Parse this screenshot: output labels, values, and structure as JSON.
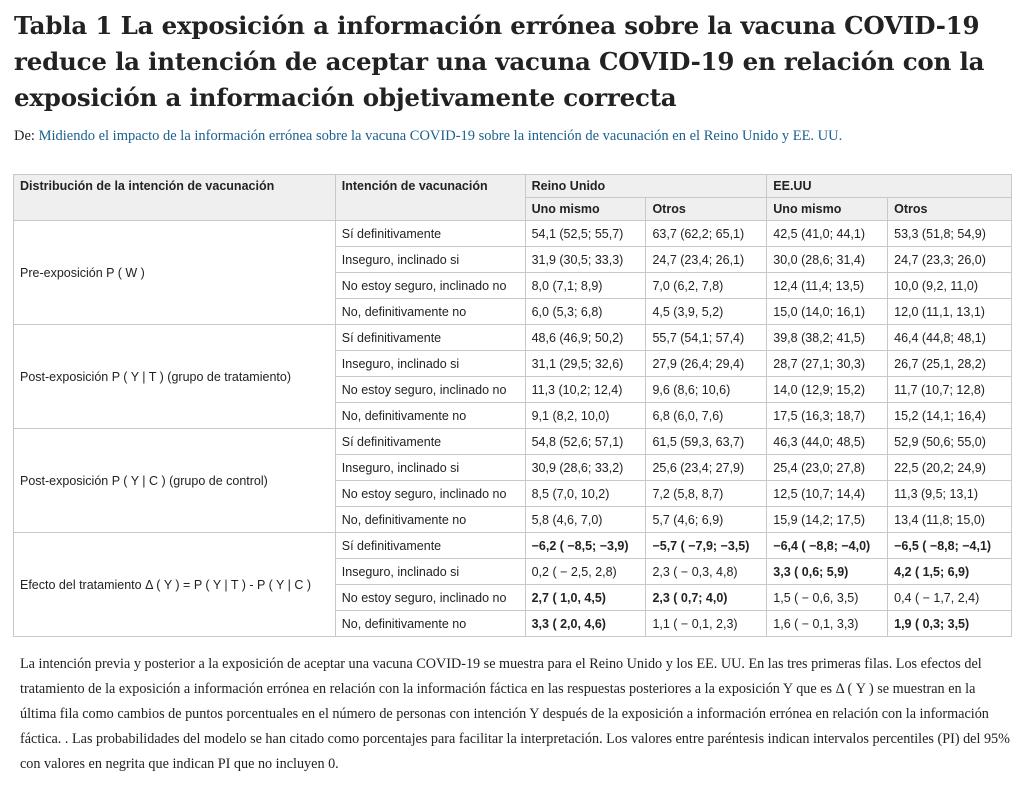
{
  "title": "Tabla 1 La exposición a información errónea sobre la vacuna COVID-19 reduce la intención de aceptar una vacuna COVID-19 en relación con la exposición a información objetivamente correcta",
  "from_prefix": "De:",
  "from_link": "Midiendo el impacto de la información errónea sobre la vacuna COVID-19 sobre la intención de vacunación en el Reino Unido y EE. UU.",
  "headers": {
    "col1": "Distribución de la intención de vacunación",
    "col2": "Intención de vacunación",
    "uk": "Reino Unido",
    "us": "EE.UU",
    "self": "Uno mismo",
    "others": "Otros"
  },
  "groups": [
    {
      "label": "Pre-exposición P ( W )",
      "rows": [
        {
          "intent": "Sí definitivamente",
          "uk_self": "54,1 (52,5; 55,7)",
          "uk_others": "63,7 (62,2; 65,1)",
          "us_self": "42,5 (41,0; 44,1)",
          "us_others": "53,3 (51,8; 54,9)"
        },
        {
          "intent": "Inseguro, inclinado si",
          "uk_self": "31,9 (30,5; 33,3)",
          "uk_others": "24,7 (23,4; 26,1)",
          "us_self": "30,0 (28,6; 31,4)",
          "us_others": "24,7 (23,3; 26,0)"
        },
        {
          "intent": "No estoy seguro, inclinado no",
          "uk_self": "8,0 (7,1; 8,9)",
          "uk_others": "7,0 (6,2, 7,8)",
          "us_self": "12,4 (11,4; 13,5)",
          "us_others": "10,0 (9,2, 11,0)"
        },
        {
          "intent": "No, definitivamente no",
          "uk_self": "6,0 (5,3; 6,8)",
          "uk_others": "4,5 (3,9, 5,2)",
          "us_self": "15,0 (14,0; 16,1)",
          "us_others": "12,0 (11,1, 13,1)"
        }
      ]
    },
    {
      "label": "Post-exposición P ( Y | T ) (grupo de tratamiento)",
      "rows": [
        {
          "intent": "Sí definitivamente",
          "uk_self": "48,6 (46,9; 50,2)",
          "uk_others": "55,7 (54,1; 57,4)",
          "us_self": "39,8 (38,2; 41,5)",
          "us_others": "46,4 (44,8; 48,1)"
        },
        {
          "intent": "Inseguro, inclinado si",
          "uk_self": "31,1 (29,5; 32,6)",
          "uk_others": "27,9 (26,4; 29,4)",
          "us_self": "28,7 (27,1; 30,3)",
          "us_others": "26,7 (25,1, 28,2)"
        },
        {
          "intent": "No estoy seguro, inclinado no",
          "uk_self": "11,3 (10,2; 12,4)",
          "uk_others": "9,6 (8,6; 10,6)",
          "us_self": "14,0 (12,9; 15,2)",
          "us_others": "11,7 (10,7; 12,8)"
        },
        {
          "intent": "No, definitivamente no",
          "uk_self": "9,1 (8,2, 10,0)",
          "uk_others": "6,8 (6,0, 7,6)",
          "us_self": "17,5 (16,3; 18,7)",
          "us_others": "15,2 (14,1; 16,4)"
        }
      ]
    },
    {
      "label": "Post-exposición P ( Y | C ) (grupo de control)",
      "rows": [
        {
          "intent": "Sí definitivamente",
          "uk_self": "54,8 (52,6; 57,1)",
          "uk_others": "61,5 (59,3, 63,7)",
          "us_self": "46,3 (44,0; 48,5)",
          "us_others": "52,9 (50,6; 55,0)"
        },
        {
          "intent": "Inseguro, inclinado si",
          "uk_self": "30,9 (28,6; 33,2)",
          "uk_others": "25,6 (23,4; 27,9)",
          "us_self": "25,4 (23,0; 27,8)",
          "us_others": "22,5 (20,2; 24,9)"
        },
        {
          "intent": "No estoy seguro, inclinado no",
          "uk_self": "8,5 (7,0, 10,2)",
          "uk_others": "7,2 (5,8, 8,7)",
          "us_self": "12,5 (10,7; 14,4)",
          "us_others": "11,3 (9,5; 13,1)"
        },
        {
          "intent": "No, definitivamente no",
          "uk_self": "5,8 (4,6, 7,0)",
          "uk_others": "5,7 (4,6; 6,9)",
          "us_self": "15,9 (14,2; 17,5)",
          "us_others": "13,4 (11,8; 15,0)"
        }
      ]
    },
    {
      "label": "Efecto del tratamiento Δ ( Y ) = P ( Y | T ) - P ( Y | C )",
      "rows": [
        {
          "intent": "Sí definitivamente",
          "uk_self": "−6,2 ( −8,5; −3,9)",
          "uk_others": "−5,7 ( −7,9; −3,5)",
          "us_self": "−6,4 ( −8,8; −4,0)",
          "us_others": "−6,5 ( −8,8; −4,1)",
          "bold": [
            true,
            true,
            true,
            true
          ]
        },
        {
          "intent": "Inseguro, inclinado si",
          "uk_self": "0,2 ( − 2,5, 2,8)",
          "uk_others": "2,3 ( − 0,3, 4,8)",
          "us_self": "3,3 ( 0,6; 5,9)",
          "us_others": "4,2 ( 1,5; 6,9)",
          "bold": [
            false,
            false,
            true,
            true
          ]
        },
        {
          "intent": "No estoy seguro, inclinado no",
          "uk_self": "2,7 ( 1,0, 4,5)",
          "uk_others": "2,3 ( 0,7; 4,0)",
          "us_self": "1,5 ( − 0,6, 3,5)",
          "us_others": "0,4 ( − 1,7, 2,4)",
          "bold": [
            true,
            true,
            false,
            false
          ]
        },
        {
          "intent": "No, definitivamente no",
          "uk_self": "3,3 ( 2,0, 4,6)",
          "uk_others": "1,1 ( − 0,1, 2,3)",
          "us_self": "1,6 ( − 0,1, 3,3)",
          "us_others": "1,9 ( 0,3; 3,5)",
          "bold": [
            true,
            false,
            false,
            true
          ]
        }
      ]
    }
  ],
  "note": "La intención previa y posterior a la exposición de aceptar una vacuna COVID-19 se muestra para el Reino Unido y los EE. UU. En las tres primeras filas. Los efectos del tratamiento de la exposición a información errónea en relación con la información fáctica en las respuestas posteriores a la exposición Y que es Δ ( Y ) se muestran en la última fila como cambios de puntos porcentuales en el número de personas con intención Y después de la exposición a información errónea en relación con la información fáctica. . Las probabilidades del modelo se han citado como porcentajes para facilitar la interpretación. Los valores entre paréntesis indican intervalos percentiles (PI) del 95% con valores en negrita que indican PI que no incluyen 0."
}
